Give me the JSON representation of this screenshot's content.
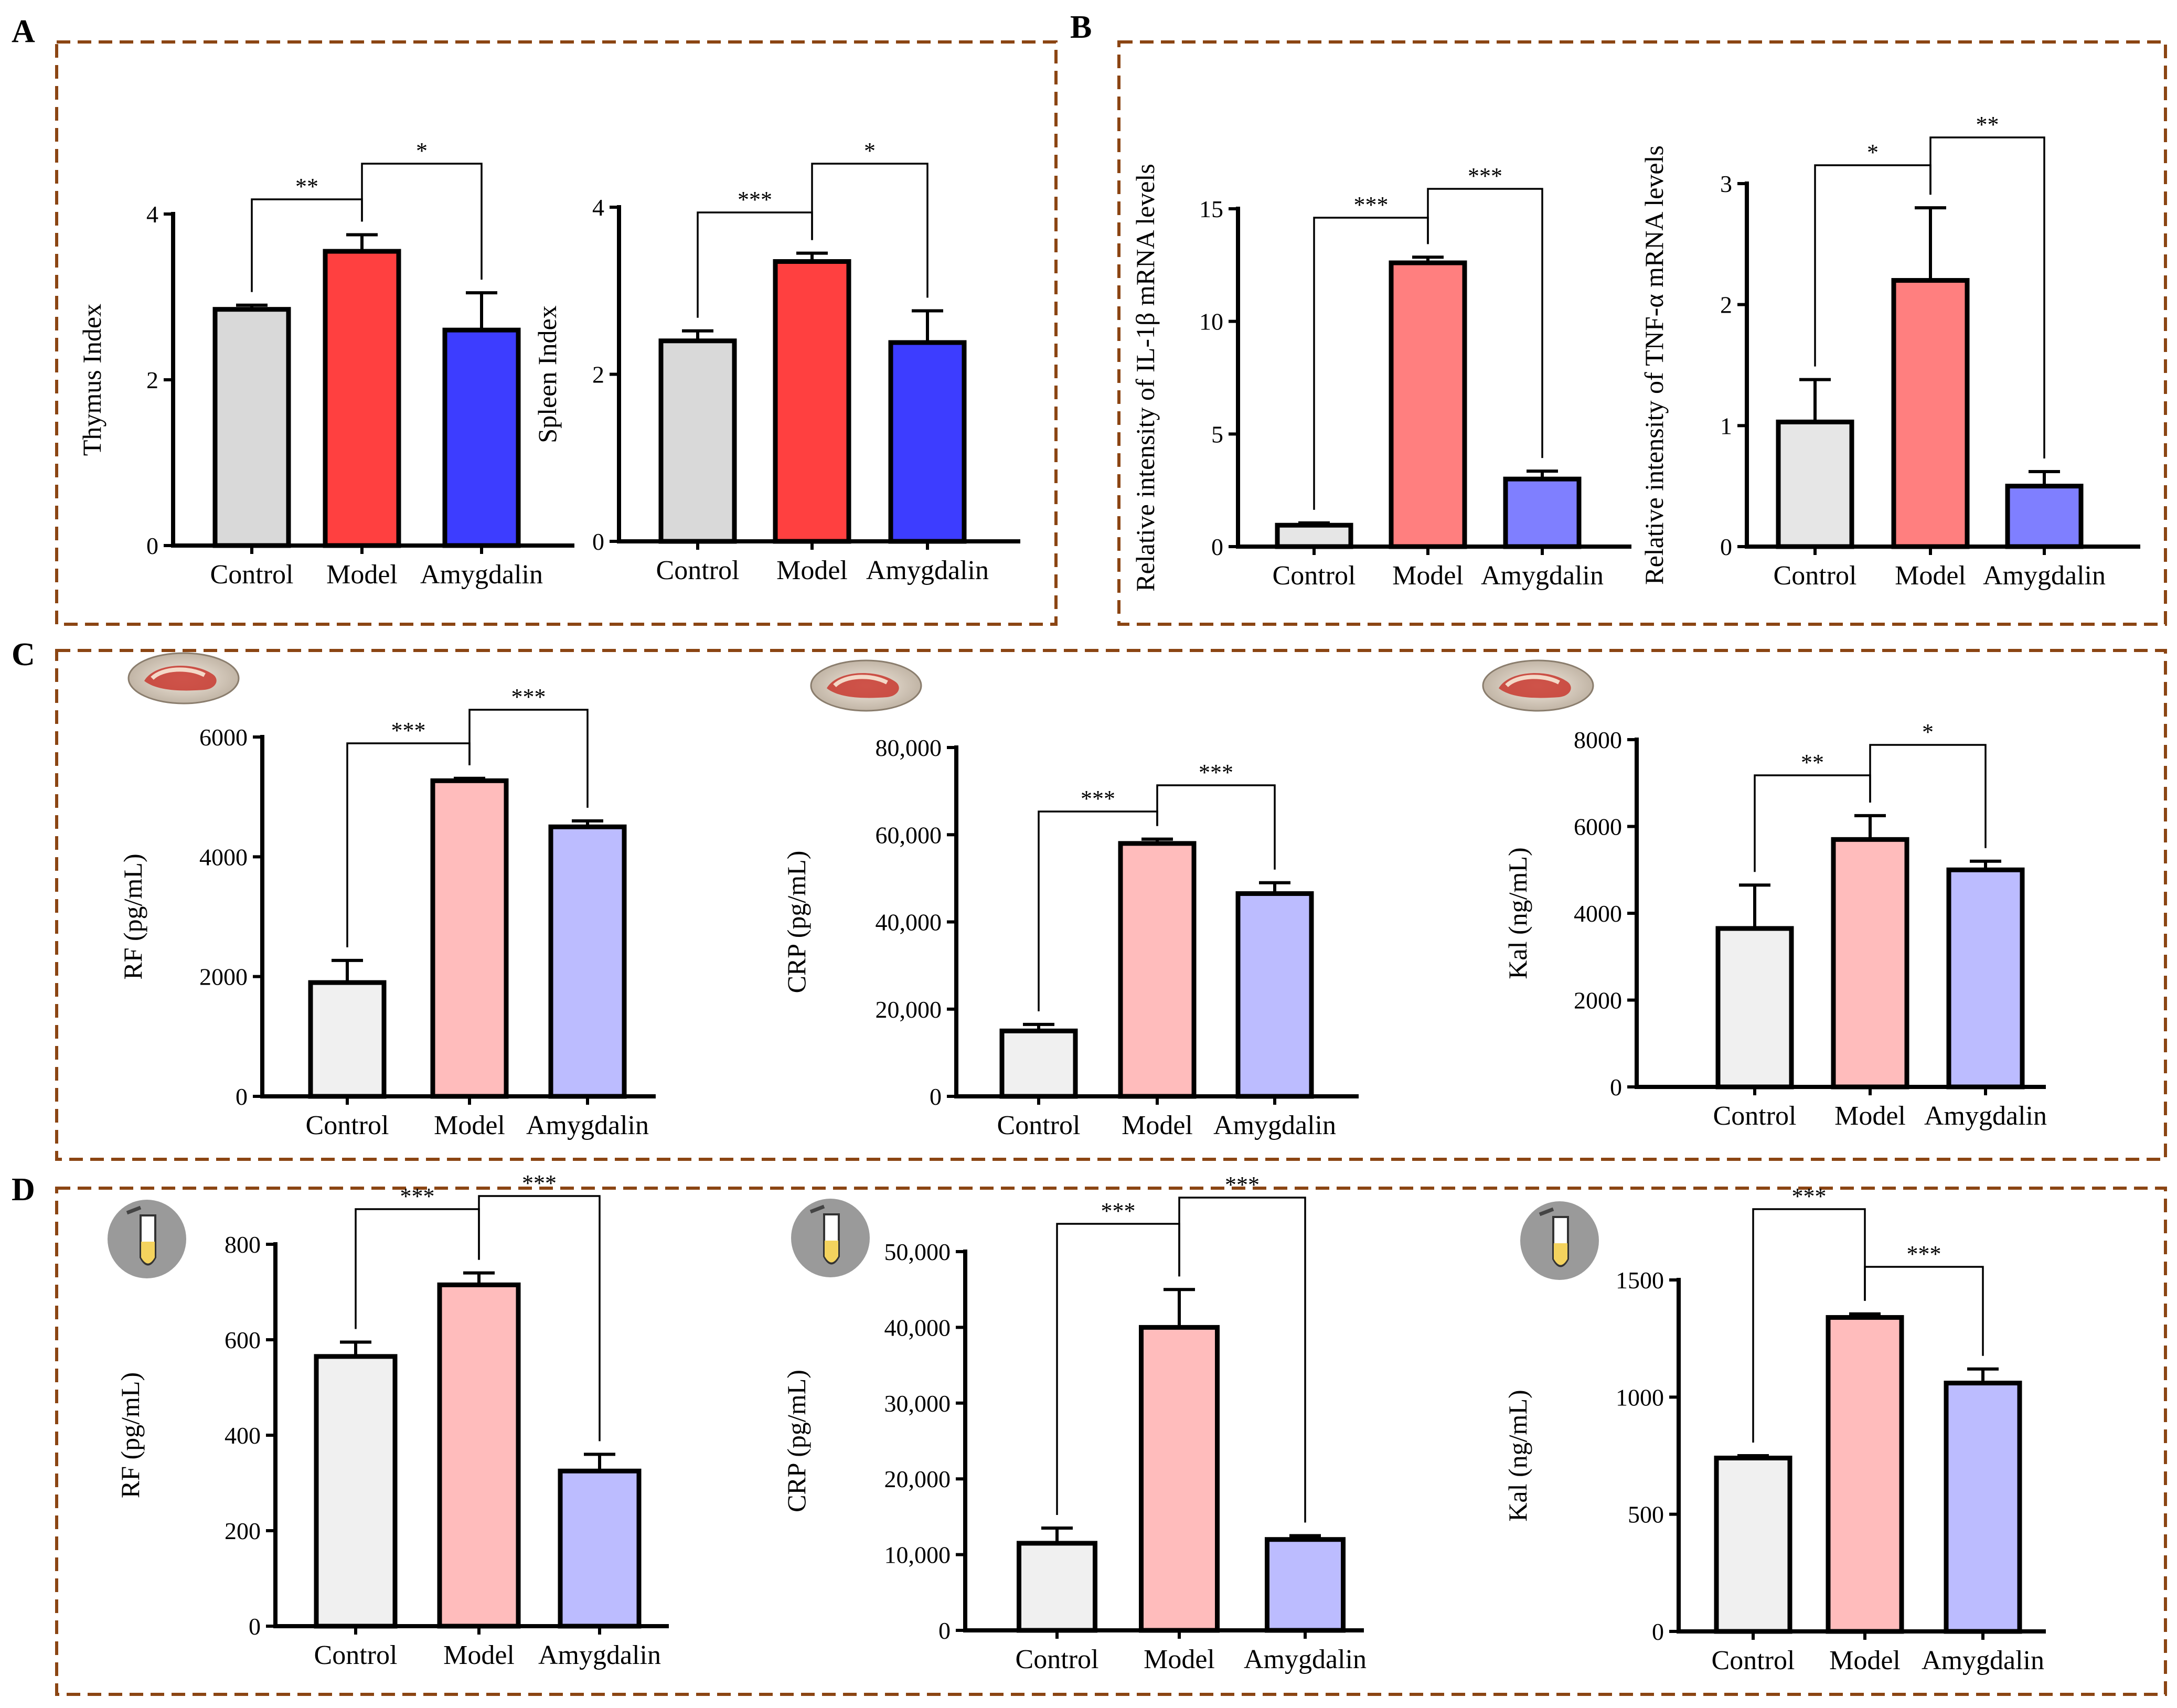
{
  "panels": {
    "A": "A",
    "B": "B",
    "C": "C",
    "D": "D"
  },
  "colors": {
    "frame": "#8B4513",
    "strong": {
      "control": "#d9d9d9",
      "model": "#ff4040",
      "amygdalin": "#3d3dff"
    },
    "medium": {
      "control": "#e6e6e6",
      "model": "#ff7f7f",
      "amygdalin": "#7f7fff"
    },
    "light": {
      "control": "#f0f0f0",
      "model": "#ffbcbc",
      "amygdalin": "#bcbcff"
    }
  },
  "icons": {
    "C": "mouse-photo-icon",
    "D": "serum-tube-icon"
  },
  "chart_data": [
    {
      "id": "A1",
      "panel": "A",
      "type": "bar",
      "palette": "strong",
      "categories": [
        "Control",
        "Model",
        "Amygdalin"
      ],
      "values": [
        2.85,
        3.55,
        2.6
      ],
      "errors": [
        0.05,
        0.2,
        0.45
      ],
      "ylabel": "Thymus Index",
      "ylim": [
        0,
        4
      ],
      "yticks": [
        0,
        2,
        4
      ],
      "ytick_labels": [
        "0",
        "2",
        "4"
      ],
      "comparisons": [
        {
          "from": 0,
          "to": 1,
          "label": "**"
        },
        {
          "from": 1,
          "to": 2,
          "label": "*"
        }
      ]
    },
    {
      "id": "A2",
      "panel": "A",
      "type": "bar",
      "palette": "strong",
      "categories": [
        "Control",
        "Model",
        "Amygdalin"
      ],
      "values": [
        2.4,
        3.35,
        2.38
      ],
      "errors": [
        0.12,
        0.1,
        0.38
      ],
      "ylabel": "Spleen Index",
      "ylim": [
        0,
        4
      ],
      "yticks": [
        0,
        2,
        4
      ],
      "ytick_labels": [
        "0",
        "2",
        "4"
      ],
      "comparisons": [
        {
          "from": 0,
          "to": 1,
          "label": "***"
        },
        {
          "from": 1,
          "to": 2,
          "label": "*"
        }
      ]
    },
    {
      "id": "B1",
      "panel": "B",
      "type": "bar",
      "palette": "medium",
      "categories": [
        "Control",
        "Model",
        "Amygdalin"
      ],
      "values": [
        0.95,
        12.6,
        3.0
      ],
      "errors": [
        0.1,
        0.25,
        0.35
      ],
      "ylabel": "Relative intensity of IL-1β mRNA levels",
      "ylim": [
        0,
        15
      ],
      "yticks": [
        0,
        5,
        10,
        15
      ],
      "ytick_labels": [
        "0",
        "5",
        "10",
        "15"
      ],
      "comparisons": [
        {
          "from": 0,
          "to": 1,
          "label": "***"
        },
        {
          "from": 1,
          "to": 2,
          "label": "***"
        }
      ]
    },
    {
      "id": "B2",
      "panel": "B",
      "type": "bar",
      "palette": "medium",
      "categories": [
        "Control",
        "Model",
        "Amygdalin"
      ],
      "values": [
        1.03,
        2.2,
        0.5
      ],
      "errors": [
        0.35,
        0.6,
        0.12
      ],
      "ylabel": "Relative intensity of TNF-α mRNA levels",
      "ylim": [
        0,
        3
      ],
      "yticks": [
        0,
        1,
        2,
        3
      ],
      "ytick_labels": [
        "0",
        "1",
        "2",
        "3"
      ],
      "comparisons": [
        {
          "from": 0,
          "to": 1,
          "label": "*"
        },
        {
          "from": 1,
          "to": 2,
          "label": "**"
        }
      ]
    },
    {
      "id": "C1",
      "panel": "C",
      "type": "bar",
      "palette": "light",
      "categories": [
        "Control",
        "Model",
        "Amygdalin"
      ],
      "values": [
        1900,
        5270,
        4500
      ],
      "errors": [
        370,
        40,
        100
      ],
      "ylabel": "RF (pg/mL)",
      "ylim": [
        0,
        6000
      ],
      "yticks": [
        0,
        2000,
        4000,
        6000
      ],
      "ytick_labels": [
        "0",
        "2000",
        "4000",
        "6000"
      ],
      "comparisons": [
        {
          "from": 0,
          "to": 1,
          "label": "***"
        },
        {
          "from": 1,
          "to": 2,
          "label": "***"
        }
      ]
    },
    {
      "id": "C2",
      "panel": "C",
      "type": "bar",
      "palette": "light",
      "categories": [
        "Control",
        "Model",
        "Amygdalin"
      ],
      "values": [
        15000,
        58000,
        46500
      ],
      "errors": [
        1500,
        1000,
        2500
      ],
      "ylabel": "CRP (pg/mL)",
      "ylim": [
        0,
        80000
      ],
      "yticks": [
        0,
        20000,
        40000,
        60000,
        80000
      ],
      "ytick_labels": [
        "0",
        "20,000",
        "40,000",
        "60,000",
        "80,000"
      ],
      "comparisons": [
        {
          "from": 0,
          "to": 1,
          "label": "***"
        },
        {
          "from": 1,
          "to": 2,
          "label": "***"
        }
      ]
    },
    {
      "id": "C3",
      "panel": "C",
      "type": "bar",
      "palette": "light",
      "categories": [
        "Control",
        "Model",
        "Amygdalin"
      ],
      "values": [
        3650,
        5700,
        5000
      ],
      "errors": [
        1000,
        550,
        200
      ],
      "ylabel": "Kal (ng/mL)",
      "ylim": [
        0,
        8000
      ],
      "yticks": [
        0,
        2000,
        4000,
        6000,
        8000
      ],
      "ytick_labels": [
        "0",
        "2000",
        "4000",
        "6000",
        "8000"
      ],
      "comparisons": [
        {
          "from": 0,
          "to": 1,
          "label": "**"
        },
        {
          "from": 1,
          "to": 2,
          "label": "*"
        }
      ]
    },
    {
      "id": "D1",
      "panel": "D",
      "type": "bar",
      "palette": "light",
      "categories": [
        "Control",
        "Model",
        "Amygdalin"
      ],
      "values": [
        565,
        715,
        325
      ],
      "errors": [
        30,
        25,
        35
      ],
      "ylabel": "RF (pg/mL)",
      "ylim": [
        0,
        800
      ],
      "yticks": [
        0,
        200,
        400,
        600,
        800
      ],
      "ytick_labels": [
        "0",
        "200",
        "400",
        "600",
        "800"
      ],
      "comparisons": [
        {
          "from": 0,
          "to": 1,
          "label": "***"
        },
        {
          "from": 1,
          "to": 2,
          "label": "***"
        }
      ]
    },
    {
      "id": "D2",
      "panel": "D",
      "type": "bar",
      "palette": "light",
      "categories": [
        "Control",
        "Model",
        "Amygdalin"
      ],
      "values": [
        11500,
        40000,
        12000
      ],
      "errors": [
        2000,
        5000,
        500
      ],
      "ylabel": "CRP (pg/mL)",
      "ylim": [
        0,
        50000
      ],
      "yticks": [
        0,
        10000,
        20000,
        30000,
        40000,
        50000
      ],
      "ytick_labels": [
        "0",
        "10,000",
        "20,000",
        "30,000",
        "40,000",
        "50,000"
      ],
      "comparisons": [
        {
          "from": 0,
          "to": 1,
          "label": "***"
        },
        {
          "from": 1,
          "to": 2,
          "label": "***"
        }
      ]
    },
    {
      "id": "D3",
      "panel": "D",
      "type": "bar",
      "palette": "light",
      "categories": [
        "Control",
        "Model",
        "Amygdalin"
      ],
      "values": [
        740,
        1340,
        1060
      ],
      "errors": [
        10,
        15,
        60
      ],
      "ylabel": "Kal (ng/mL)",
      "ylim": [
        0,
        1500
      ],
      "yticks": [
        0,
        500,
        1000,
        1500
      ],
      "ytick_labels": [
        "0",
        "500",
        "1000",
        "1500"
      ],
      "comparisons": [
        {
          "from": 0,
          "to": 1,
          "label": "***"
        },
        {
          "from": 1,
          "to": 2,
          "label": "***"
        }
      ]
    }
  ]
}
